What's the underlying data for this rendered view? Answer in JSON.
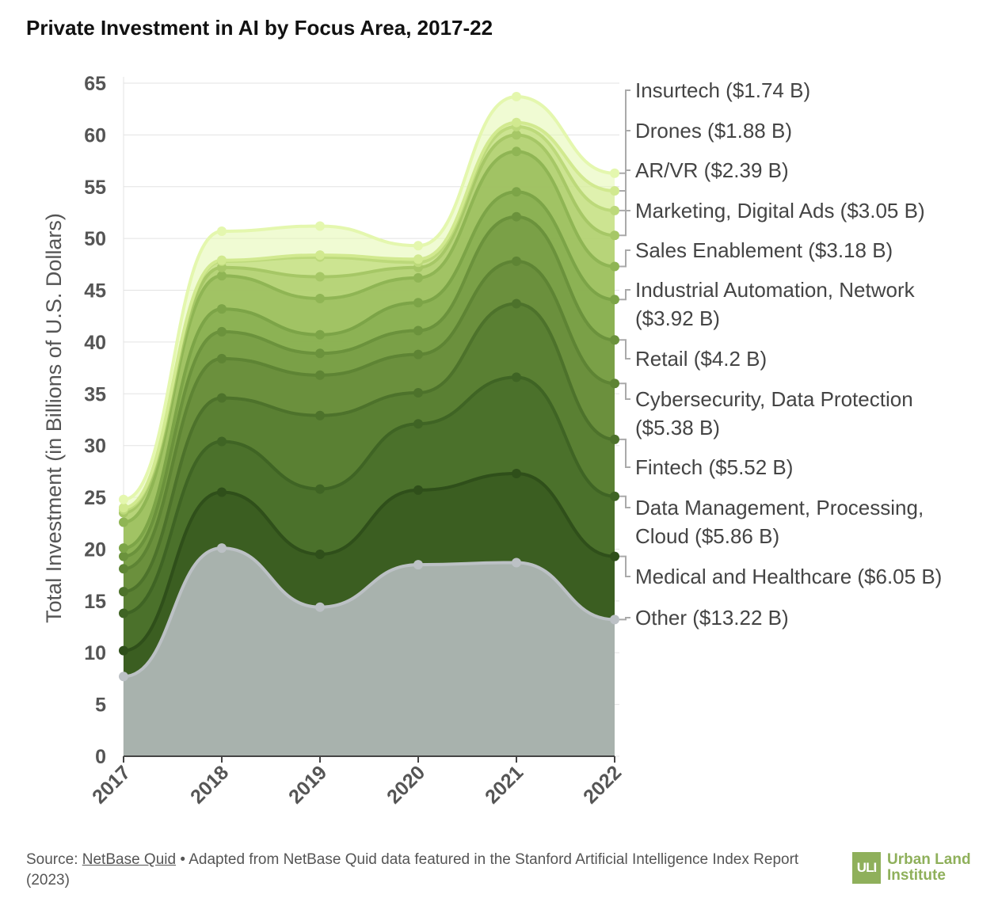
{
  "title": "Private Investment in AI by Focus Area, 2017-22",
  "footer": {
    "source_prefix": "Source: ",
    "source_link": "NetBase Quid",
    "source_rest": " • Adapted from NetBase Quid data featured in the Stanford Artificial Intelligence Index Report (2023)"
  },
  "logo": {
    "mark": "ULI",
    "line1": "Urban Land",
    "line2": "Institute",
    "color": "#8fb05b"
  },
  "chart_data": {
    "type": "area",
    "stacked": true,
    "smooth": true,
    "ylabel": "Total Investment (in Billions of U.S. Dollars)",
    "xlabel": "",
    "ylim": [
      0,
      65
    ],
    "yticks": [
      0,
      5,
      10,
      15,
      20,
      25,
      30,
      35,
      40,
      45,
      50,
      55,
      60,
      65
    ],
    "categories": [
      "2017",
      "2018",
      "2019",
      "2020",
      "2021",
      "2022"
    ],
    "grid": true,
    "legend": "right, labels aligned to 2022 values",
    "series": [
      {
        "name": "Other",
        "label": "Other ($13.22 B)",
        "color": "#bcc1c5",
        "cumulative": [
          7.7,
          20.1,
          14.4,
          18.5,
          18.7,
          13.2
        ]
      },
      {
        "name": "Medical and Healthcare",
        "label": "Medical and Healthcare ($6.05 B)",
        "color": "#2f4f1a",
        "cumulative": [
          10.2,
          25.5,
          19.5,
          25.7,
          27.3,
          19.3
        ]
      },
      {
        "name": "Data Management, Processing, Cloud",
        "label": [
          "Data Management, Processing,",
          "Cloud ($5.86 B)"
        ],
        "color": "#3f6424",
        "cumulative": [
          13.8,
          30.4,
          25.8,
          32.1,
          36.6,
          25.1
        ]
      },
      {
        "name": "Fintech",
        "label": "Fintech ($5.52 B)",
        "color": "#4d722b",
        "cumulative": [
          15.9,
          34.6,
          32.9,
          35.1,
          43.7,
          30.6
        ]
      },
      {
        "name": "Cybersecurity, Data Protection",
        "label": [
          "Cybersecurity, Data Protection",
          "($5.38 B)"
        ],
        "color": "#5e8434",
        "cumulative": [
          18.1,
          38.4,
          36.8,
          38.8,
          47.8,
          36.0
        ]
      },
      {
        "name": "Retail",
        "label": "Retail ($4.2 B)",
        "color": "#6b923c",
        "cumulative": [
          19.3,
          41.0,
          38.9,
          41.1,
          52.1,
          40.2
        ]
      },
      {
        "name": "Industrial Automation, Network",
        "label": [
          "Industrial Automation, Network",
          "($3.92 B)"
        ],
        "color": "#7ca447",
        "cumulative": [
          20.1,
          43.2,
          40.7,
          43.8,
          54.5,
          44.1
        ]
      },
      {
        "name": "Sales Enablement",
        "label": "Sales Enablement ($3.18 B)",
        "color": "#8fb554",
        "cumulative": [
          22.6,
          46.4,
          44.2,
          46.2,
          58.4,
          47.3
        ]
      },
      {
        "name": "Marketing, Digital Ads",
        "label": "Marketing, Digital Ads ($3.05 B)",
        "color": "#a6c766",
        "cumulative": [
          23.5,
          47.2,
          46.3,
          47.2,
          60.0,
          50.3
        ]
      },
      {
        "name": "AR/VR",
        "label": "AR/VR ($2.39 B)",
        "color": "#bcd97a",
        "cumulative": [
          23.8,
          47.8,
          48.2,
          47.7,
          60.8,
          52.7
        ]
      },
      {
        "name": "Drones",
        "label": "Drones ($1.88 B)",
        "color": "#d1e98f",
        "cumulative": [
          24.0,
          47.9,
          48.4,
          48.0,
          61.2,
          54.6
        ]
      },
      {
        "name": "Insurtech",
        "label": "Insurtech ($1.74 B)",
        "color": "#e4f7ae",
        "cumulative": [
          24.8,
          50.7,
          51.2,
          49.3,
          63.7,
          56.3
        ]
      }
    ]
  }
}
